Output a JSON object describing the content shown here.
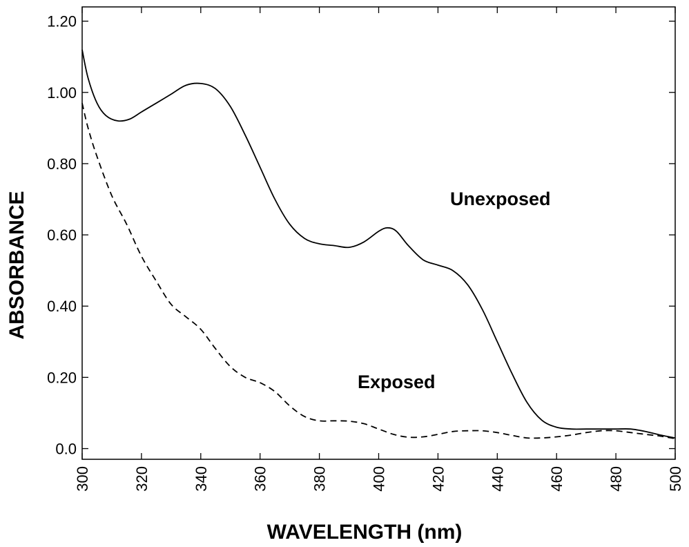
{
  "chart_data": {
    "type": "line",
    "title": "",
    "xlabel": "WAVELENGTH (nm)",
    "ylabel": "ABSORBANCE",
    "xlim": [
      300,
      500
    ],
    "ylim": [
      -0.03,
      1.24
    ],
    "x_ticks": [
      300,
      320,
      340,
      360,
      380,
      400,
      420,
      440,
      460,
      480,
      500
    ],
    "x_tick_labels": [
      "300",
      "320",
      "340",
      "360",
      "380",
      "400",
      "420",
      "440",
      "460",
      "480",
      "500"
    ],
    "y_ticks": [
      0.0,
      0.2,
      0.4,
      0.6,
      0.8,
      1.0,
      1.2
    ],
    "y_tick_labels": [
      "0.0",
      "0.20",
      "0.40",
      "0.60",
      "0.80",
      "1.00",
      "1.20"
    ],
    "grid": false,
    "annotations": [
      "Unexposed",
      "Exposed"
    ],
    "series": [
      {
        "label": "Unexposed",
        "style": "solid",
        "x": [
          300,
          302,
          305,
          308,
          312,
          316,
          320,
          325,
          330,
          335,
          340,
          345,
          350,
          355,
          360,
          365,
          370,
          375,
          380,
          385,
          390,
          395,
          400,
          403,
          406,
          410,
          415,
          420,
          425,
          430,
          435,
          440,
          445,
          450,
          455,
          460,
          465,
          470,
          475,
          480,
          485,
          490,
          495,
          500
        ],
        "y": [
          1.12,
          1.04,
          0.97,
          0.935,
          0.92,
          0.925,
          0.945,
          0.97,
          0.995,
          1.02,
          1.025,
          1.01,
          0.96,
          0.88,
          0.79,
          0.7,
          0.63,
          0.59,
          0.575,
          0.57,
          0.565,
          0.58,
          0.61,
          0.62,
          0.61,
          0.57,
          0.53,
          0.515,
          0.5,
          0.46,
          0.39,
          0.3,
          0.21,
          0.13,
          0.08,
          0.06,
          0.055,
          0.055,
          0.055,
          0.055,
          0.055,
          0.048,
          0.038,
          0.03
        ]
      },
      {
        "label": "Exposed",
        "style": "dashed",
        "x": [
          300,
          302,
          305,
          310,
          315,
          320,
          325,
          330,
          335,
          340,
          345,
          350,
          355,
          360,
          365,
          370,
          375,
          380,
          385,
          390,
          395,
          400,
          405,
          410,
          415,
          420,
          425,
          430,
          435,
          440,
          445,
          450,
          455,
          460,
          465,
          470,
          475,
          480,
          485,
          490,
          495,
          500
        ],
        "y": [
          0.97,
          0.9,
          0.82,
          0.71,
          0.63,
          0.54,
          0.47,
          0.405,
          0.37,
          0.335,
          0.28,
          0.23,
          0.2,
          0.185,
          0.16,
          0.12,
          0.09,
          0.078,
          0.078,
          0.077,
          0.07,
          0.055,
          0.04,
          0.032,
          0.033,
          0.04,
          0.048,
          0.05,
          0.05,
          0.045,
          0.037,
          0.03,
          0.03,
          0.033,
          0.038,
          0.045,
          0.05,
          0.05,
          0.045,
          0.04,
          0.035,
          0.028
        ]
      }
    ]
  }
}
